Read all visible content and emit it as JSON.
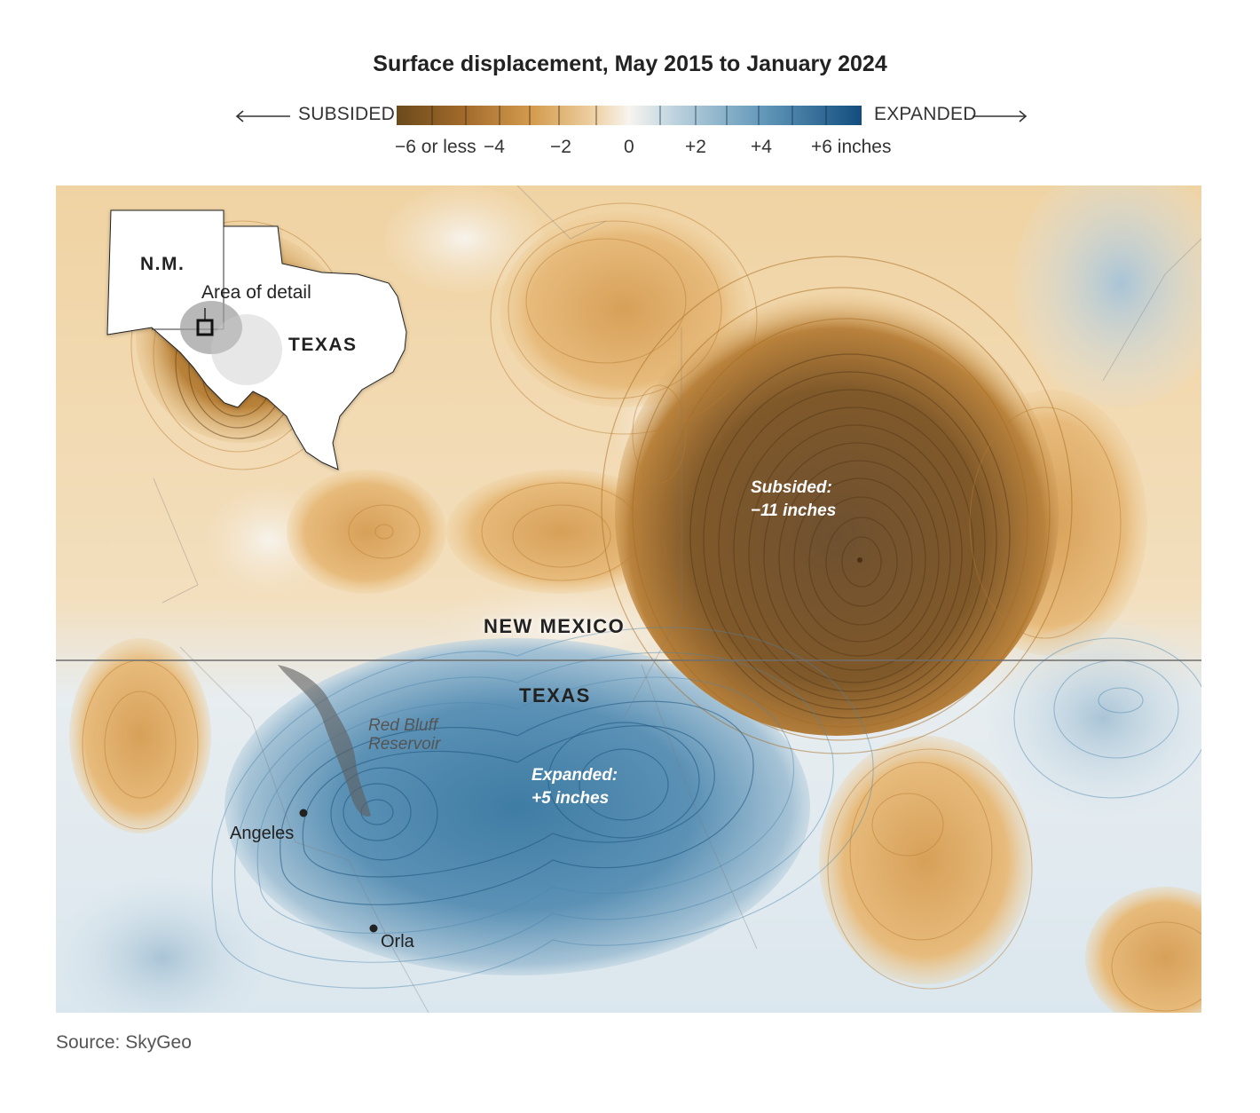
{
  "title": "Surface displacement, May 2015 to January 2024",
  "legend": {
    "left_label": "SUBSIDED",
    "right_label": "EXPANDED",
    "ticks": [
      "−6 or less",
      "−4",
      "−2",
      "0",
      "+2",
      "+4",
      "+6 inches"
    ],
    "colors": [
      "#6b4a1c",
      "#a0692a",
      "#d39b4d",
      "#efd3a8",
      "#f7f4ef",
      "#bcd2de",
      "#5d94b6",
      "#124d7e"
    ]
  },
  "inset": {
    "nm_label": "N.M.",
    "texas_label": "TEXAS",
    "detail_label": "Area of detail"
  },
  "map": {
    "state_north": "NEW MEXICO",
    "state_south": "TEXAS",
    "subsided_annotation": [
      "Subsided:",
      "−11 inches"
    ],
    "expanded_annotation": [
      "Expanded:",
      "+5 inches"
    ],
    "reservoir": [
      "Red Bluff",
      "Reservoir"
    ],
    "towns": [
      "Angeles",
      "Orla"
    ],
    "colors": {
      "subsided": "#7a5626",
      "expanded": "#3a7aa3",
      "neutral": "#f3f1ec"
    }
  },
  "source": "Source: SkyGeo"
}
